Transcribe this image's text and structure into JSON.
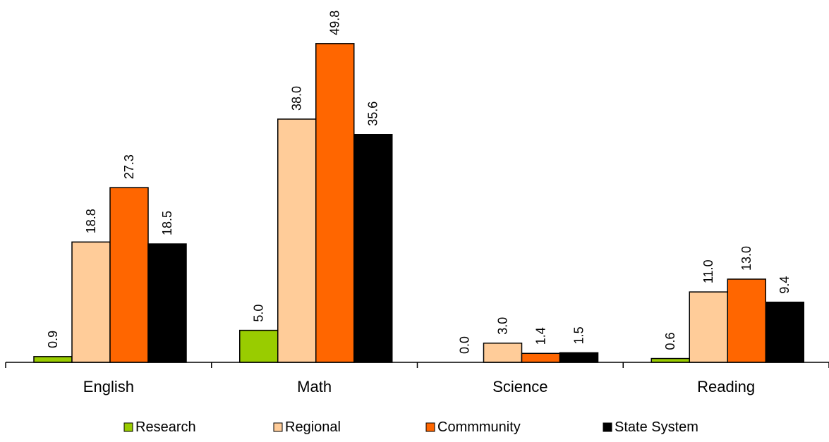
{
  "chart_data": {
    "type": "bar",
    "categories": [
      "English",
      "Math",
      "Science",
      "Reading"
    ],
    "series": [
      {
        "name": "Research",
        "color": "#99cc00",
        "values": [
          0.9,
          5.0,
          0.0,
          0.6
        ],
        "labels": [
          "0.9",
          "5.0",
          "0.0",
          "0.6"
        ]
      },
      {
        "name": "Regional",
        "color": "#ffcc99",
        "values": [
          18.8,
          38.0,
          3.0,
          11.0
        ],
        "labels": [
          "18.8",
          "38.0",
          "3.0",
          "11.0"
        ]
      },
      {
        "name": "Commmunity",
        "color": "#ff6600",
        "values": [
          27.3,
          49.8,
          1.4,
          13.0
        ],
        "labels": [
          "27.3",
          "49.8",
          "1.4",
          "13.0"
        ]
      },
      {
        "name": "State System",
        "color": "#000000",
        "values": [
          18.5,
          35.6,
          1.5,
          9.4
        ],
        "labels": [
          "18.5",
          "35.6",
          "1.5",
          "9.4"
        ]
      }
    ],
    "ylim": [
      0,
      50
    ],
    "grid": false,
    "legend_position": "bottom"
  }
}
